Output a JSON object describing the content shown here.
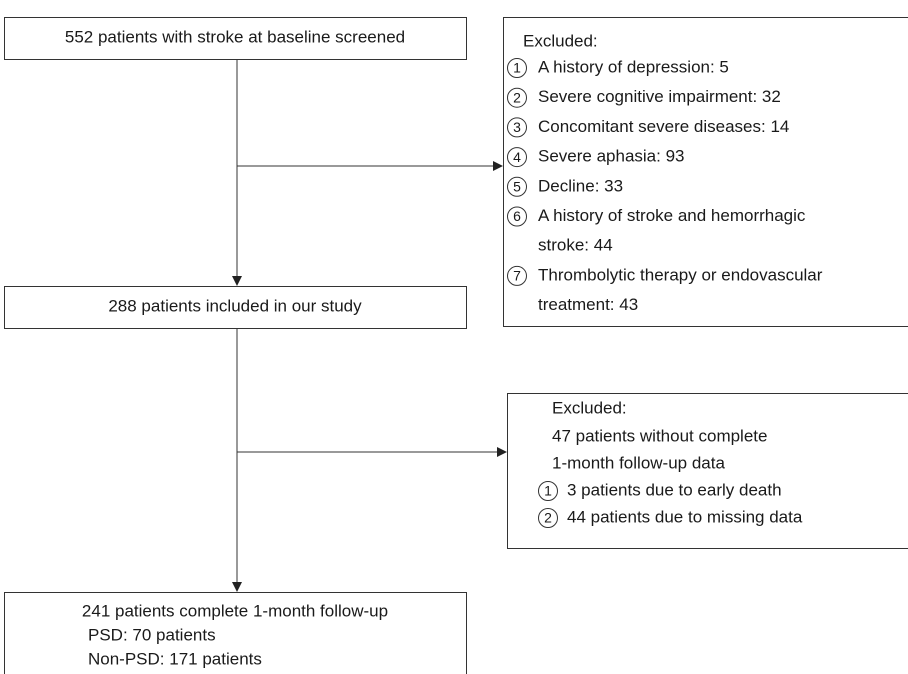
{
  "boxes": {
    "screened": "552 patients with stroke at baseline screened",
    "included": "288 patients included in our study",
    "complete": {
      "title": "241 patients complete 1-month follow-up",
      "lines": [
        "PSD: 70 patients",
        "Non-PSD: 171 patients"
      ]
    }
  },
  "exclusion1": {
    "heading": "Excluded:",
    "items": [
      {
        "marker": "1",
        "lines": [
          "A history of depression: 5"
        ]
      },
      {
        "marker": "2",
        "lines": [
          "Severe cognitive impairment: 32"
        ]
      },
      {
        "marker": "3",
        "lines": [
          "Concomitant severe diseases: 14"
        ]
      },
      {
        "marker": "4",
        "lines": [
          "Severe aphasia: 93"
        ]
      },
      {
        "marker": "5",
        "lines": [
          "Decline: 33"
        ]
      },
      {
        "marker": "6",
        "lines": [
          "A history of stroke and hemorrhagic",
          "stroke: 44"
        ]
      },
      {
        "marker": "7",
        "lines": [
          "Thrombolytic therapy or endovascular",
          "treatment: 43"
        ]
      }
    ]
  },
  "exclusion2": {
    "heading": "Excluded:",
    "lines": [
      "47 patients without complete",
      "1-month follow-up data"
    ],
    "items": [
      {
        "marker": "1",
        "lines": [
          "3 patients due to early death"
        ]
      },
      {
        "marker": "2",
        "lines": [
          "44 patients due to missing data"
        ]
      }
    ]
  }
}
